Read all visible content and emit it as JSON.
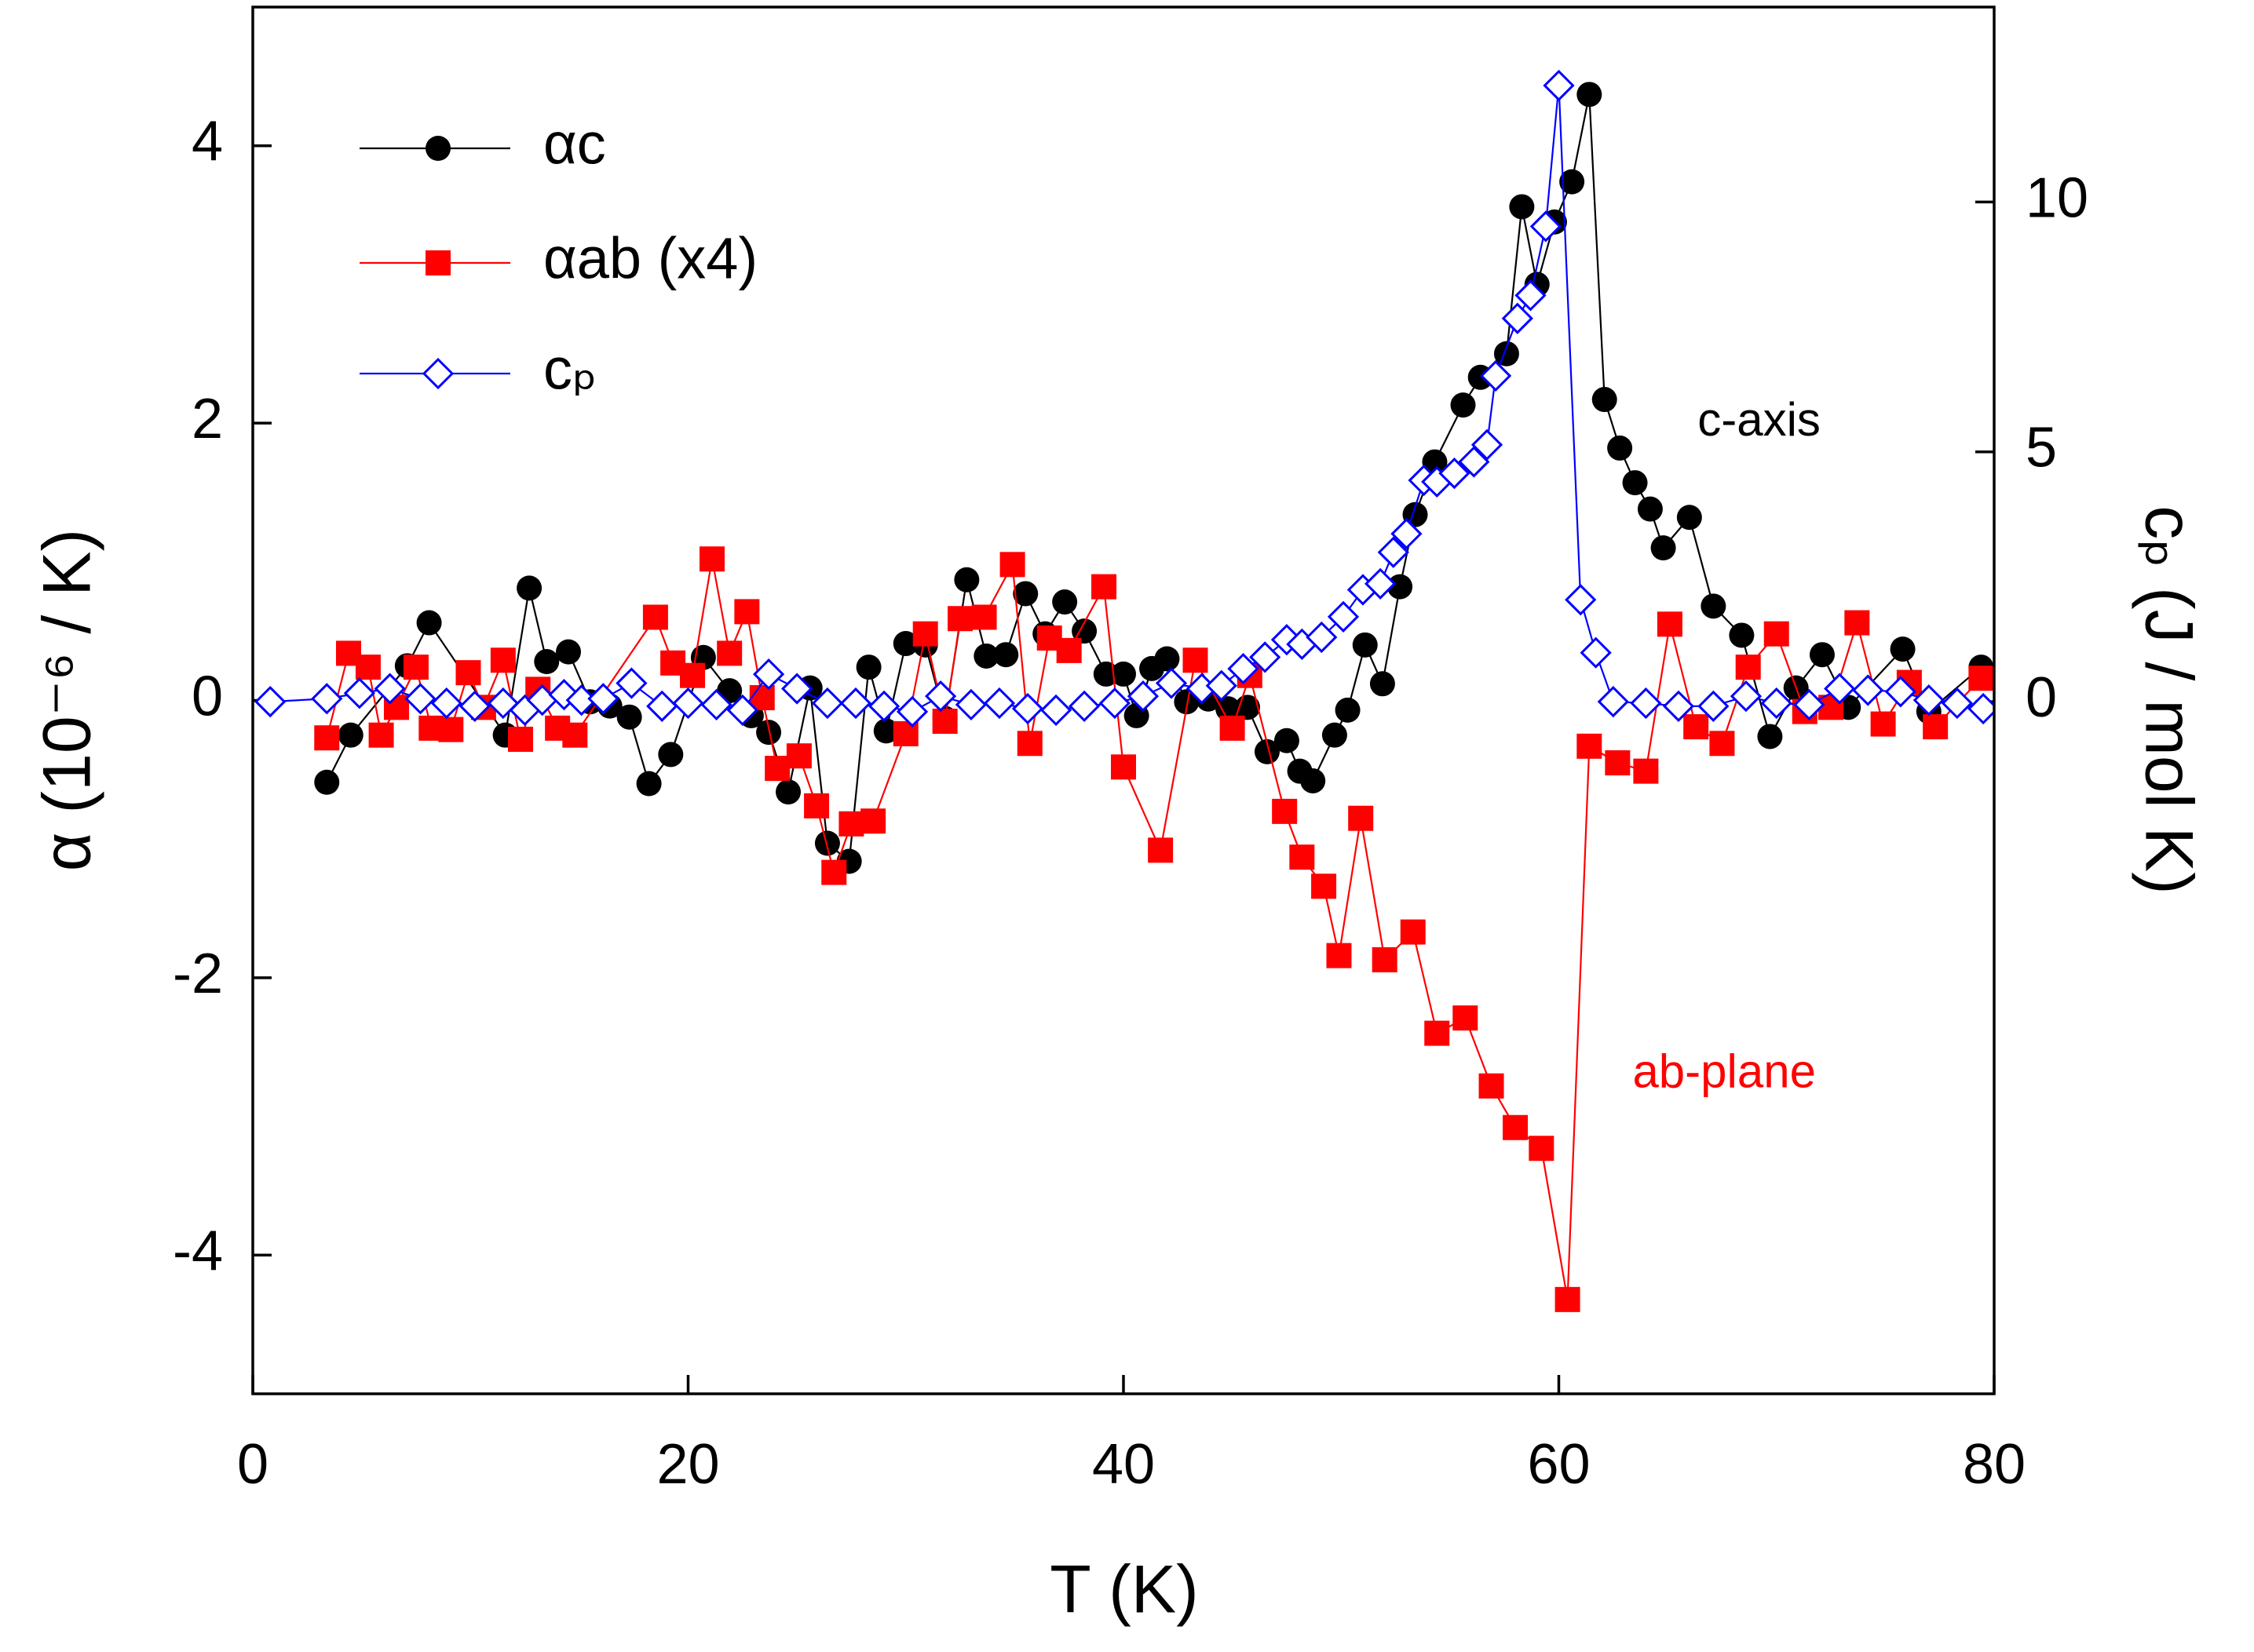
{
  "chart_data": {
    "type": "line",
    "xlabel": "T (K)",
    "ylabel": "α (10⁻⁶ / K)",
    "y2label": "cₚ (J / mol K)",
    "xlim": [
      0,
      80
    ],
    "xticks": [
      0,
      20,
      40,
      60,
      80
    ],
    "ylim": [
      -5,
      5
    ],
    "yticks": [
      -4,
      -2,
      0,
      2,
      4
    ],
    "y2lim": [
      -13.85,
      13.9
    ],
    "y2ticks": [
      0,
      5,
      10
    ],
    "legend": "upper left",
    "annotations": [
      {
        "text": "c-axis",
        "x": 69.2,
        "y": 2.0,
        "color": "#000000"
      },
      {
        "text": "ab-plane",
        "x": 67.6,
        "y": -2.7,
        "color": "#ff0000"
      }
    ],
    "series": [
      {
        "name": "αc",
        "color": "#000000",
        "marker": "circle",
        "axis": "y",
        "x": [
          3.4,
          4.5,
          7.1,
          8.1,
          11.6,
          12.7,
          13.5,
          14.5,
          15.5,
          16.4,
          17.3,
          18.2,
          19.2,
          20.7,
          21.9,
          22.9,
          23.7,
          24.6,
          25.6,
          26.4,
          27.4,
          28.3,
          29.1,
          30.0,
          30.9,
          31.8,
          32.8,
          33.7,
          34.6,
          35.5,
          36.4,
          37.3,
          38.2,
          39.2,
          40.0,
          40.6,
          41.3,
          42.0,
          42.9,
          43.9,
          44.8,
          45.7,
          46.6,
          47.5,
          48.1,
          48.7,
          49.7,
          50.3,
          51.1,
          51.9,
          52.7,
          53.4,
          54.3,
          55.6,
          56.4,
          57.6,
          58.3,
          59.0,
          59.8,
          60.6,
          61.4,
          62.1,
          62.8,
          63.5,
          64.2,
          64.8,
          66.0,
          67.1,
          68.4,
          69.7,
          70.9,
          72.1,
          73.3,
          75.8,
          77.0,
          79.4
        ],
        "values": [
          -0.59,
          -0.25,
          0.25,
          0.56,
          -0.25,
          0.81,
          0.28,
          0.35,
          -0.01,
          -0.04,
          -0.12,
          -0.6,
          -0.39,
          0.31,
          0.07,
          -0.11,
          -0.23,
          -0.66,
          0.09,
          -1.03,
          -1.16,
          0.24,
          -0.22,
          0.41,
          0.4,
          -0.13,
          0.87,
          0.32,
          0.33,
          0.77,
          0.48,
          0.71,
          0.5,
          0.19,
          0.19,
          -0.11,
          0.23,
          0.3,
          -0.01,
          0.01,
          -0.06,
          -0.05,
          -0.37,
          -0.29,
          -0.51,
          -0.58,
          -0.25,
          -0.07,
          0.4,
          0.12,
          0.82,
          1.34,
          1.72,
          2.13,
          2.33,
          2.5,
          3.56,
          3.0,
          3.45,
          3.74,
          4.37,
          2.17,
          1.82,
          1.57,
          1.38,
          1.1,
          1.32,
          0.68,
          0.47,
          -0.26,
          0.09,
          0.33,
          -0.05,
          0.37,
          -0.08,
          0.24
        ]
      },
      {
        "name": "αab (x4)",
        "color": "#ff0000",
        "marker": "square",
        "axis": "y",
        "x": [
          3.4,
          4.4,
          5.3,
          5.9,
          6.6,
          7.5,
          8.2,
          9.1,
          9.9,
          10.6,
          11.5,
          12.3,
          13.1,
          14.0,
          14.8,
          18.5,
          19.3,
          20.2,
          21.1,
          21.9,
          22.7,
          23.4,
          24.1,
          25.1,
          25.9,
          26.7,
          27.5,
          28.5,
          30.0,
          30.9,
          31.8,
          32.5,
          33.6,
          34.9,
          35.7,
          36.6,
          37.5,
          39.1,
          40.0,
          41.7,
          43.3,
          45.0,
          45.8,
          47.4,
          48.2,
          49.2,
          49.9,
          50.9,
          52.0,
          53.3,
          54.4,
          55.7,
          56.9,
          58.0,
          59.2,
          60.4,
          61.4,
          62.7,
          64.0,
          65.1,
          66.3,
          67.5,
          68.7,
          70.0,
          71.3,
          72.5,
          73.7,
          74.9,
          76.1,
          77.3,
          79.4
        ],
        "values": [
          -0.27,
          0.34,
          0.24,
          -0.25,
          -0.05,
          0.24,
          -0.2,
          -0.21,
          0.2,
          -0.05,
          0.29,
          -0.28,
          0.08,
          -0.2,
          -0.25,
          0.6,
          0.27,
          0.18,
          1.02,
          0.34,
          0.64,
          0.02,
          -0.49,
          -0.4,
          -0.76,
          -1.24,
          -0.89,
          -0.87,
          -0.24,
          0.48,
          -0.15,
          0.59,
          0.6,
          0.98,
          -0.31,
          0.45,
          0.36,
          0.82,
          -0.48,
          -1.08,
          0.29,
          -0.2,
          0.18,
          -0.8,
          -1.13,
          -1.34,
          -1.84,
          -0.85,
          -1.87,
          -1.67,
          -2.4,
          -2.29,
          -2.78,
          -3.08,
          -3.23,
          -4.32,
          -0.33,
          -0.45,
          -0.51,
          0.55,
          -0.19,
          -0.31,
          0.24,
          0.48,
          -0.08,
          -0.05,
          0.56,
          -0.17,
          0.13,
          -0.19,
          0.16
        ]
      },
      {
        "name": "cₚ",
        "color": "#0000ff",
        "marker": "diamond",
        "axis": "y2",
        "x": [
          0.8,
          3.4,
          4.9,
          6.3,
          7.7,
          8.9,
          10.2,
          11.5,
          12.5,
          13.3,
          14.3,
          15.1,
          16.1,
          17.4,
          18.8,
          20.0,
          21.3,
          22.5,
          23.7,
          25.0,
          26.4,
          27.7,
          29.0,
          30.3,
          31.6,
          33.0,
          34.3,
          35.6,
          36.9,
          38.2,
          39.6,
          40.9,
          42.2,
          43.6,
          44.5,
          45.5,
          46.5,
          47.5,
          48.2,
          49.1,
          50.1,
          51.0,
          51.8,
          52.4,
          53.0,
          53.8,
          54.4,
          55.2,
          56.1,
          56.7,
          57.1,
          58.1,
          58.7,
          59.4,
          60.0,
          61.0,
          61.7,
          62.5,
          64.0,
          65.5,
          67.1,
          68.6,
          70.0,
          71.5,
          72.9,
          74.2,
          75.7,
          77.0,
          78.3,
          79.5
        ],
        "values": [
          0,
          0.06,
          0.17,
          0.26,
          0.06,
          -0.03,
          -0.09,
          -0.03,
          -0.17,
          0.03,
          0.14,
          0.03,
          0.06,
          0.37,
          -0.09,
          -0.03,
          -0.06,
          -0.17,
          0.55,
          0.26,
          -0.03,
          -0.03,
          -0.09,
          -0.2,
          0.11,
          -0.06,
          -0.03,
          -0.14,
          -0.17,
          -0.09,
          -0.03,
          0.11,
          0.37,
          0.26,
          0.32,
          0.66,
          0.89,
          1.24,
          1.15,
          1.29,
          1.7,
          2.24,
          2.36,
          2.99,
          3.36,
          4.43,
          4.4,
          4.57,
          4.8,
          5.14,
          6.52,
          7.67,
          8.13,
          9.51,
          12.33,
          2.04,
          0.98,
          0,
          -0.03,
          -0.09,
          -0.09,
          0.11,
          -0.03,
          -0.06,
          0.26,
          0.23,
          0.2,
          0.03,
          -0.03,
          -0.14
        ]
      }
    ]
  }
}
